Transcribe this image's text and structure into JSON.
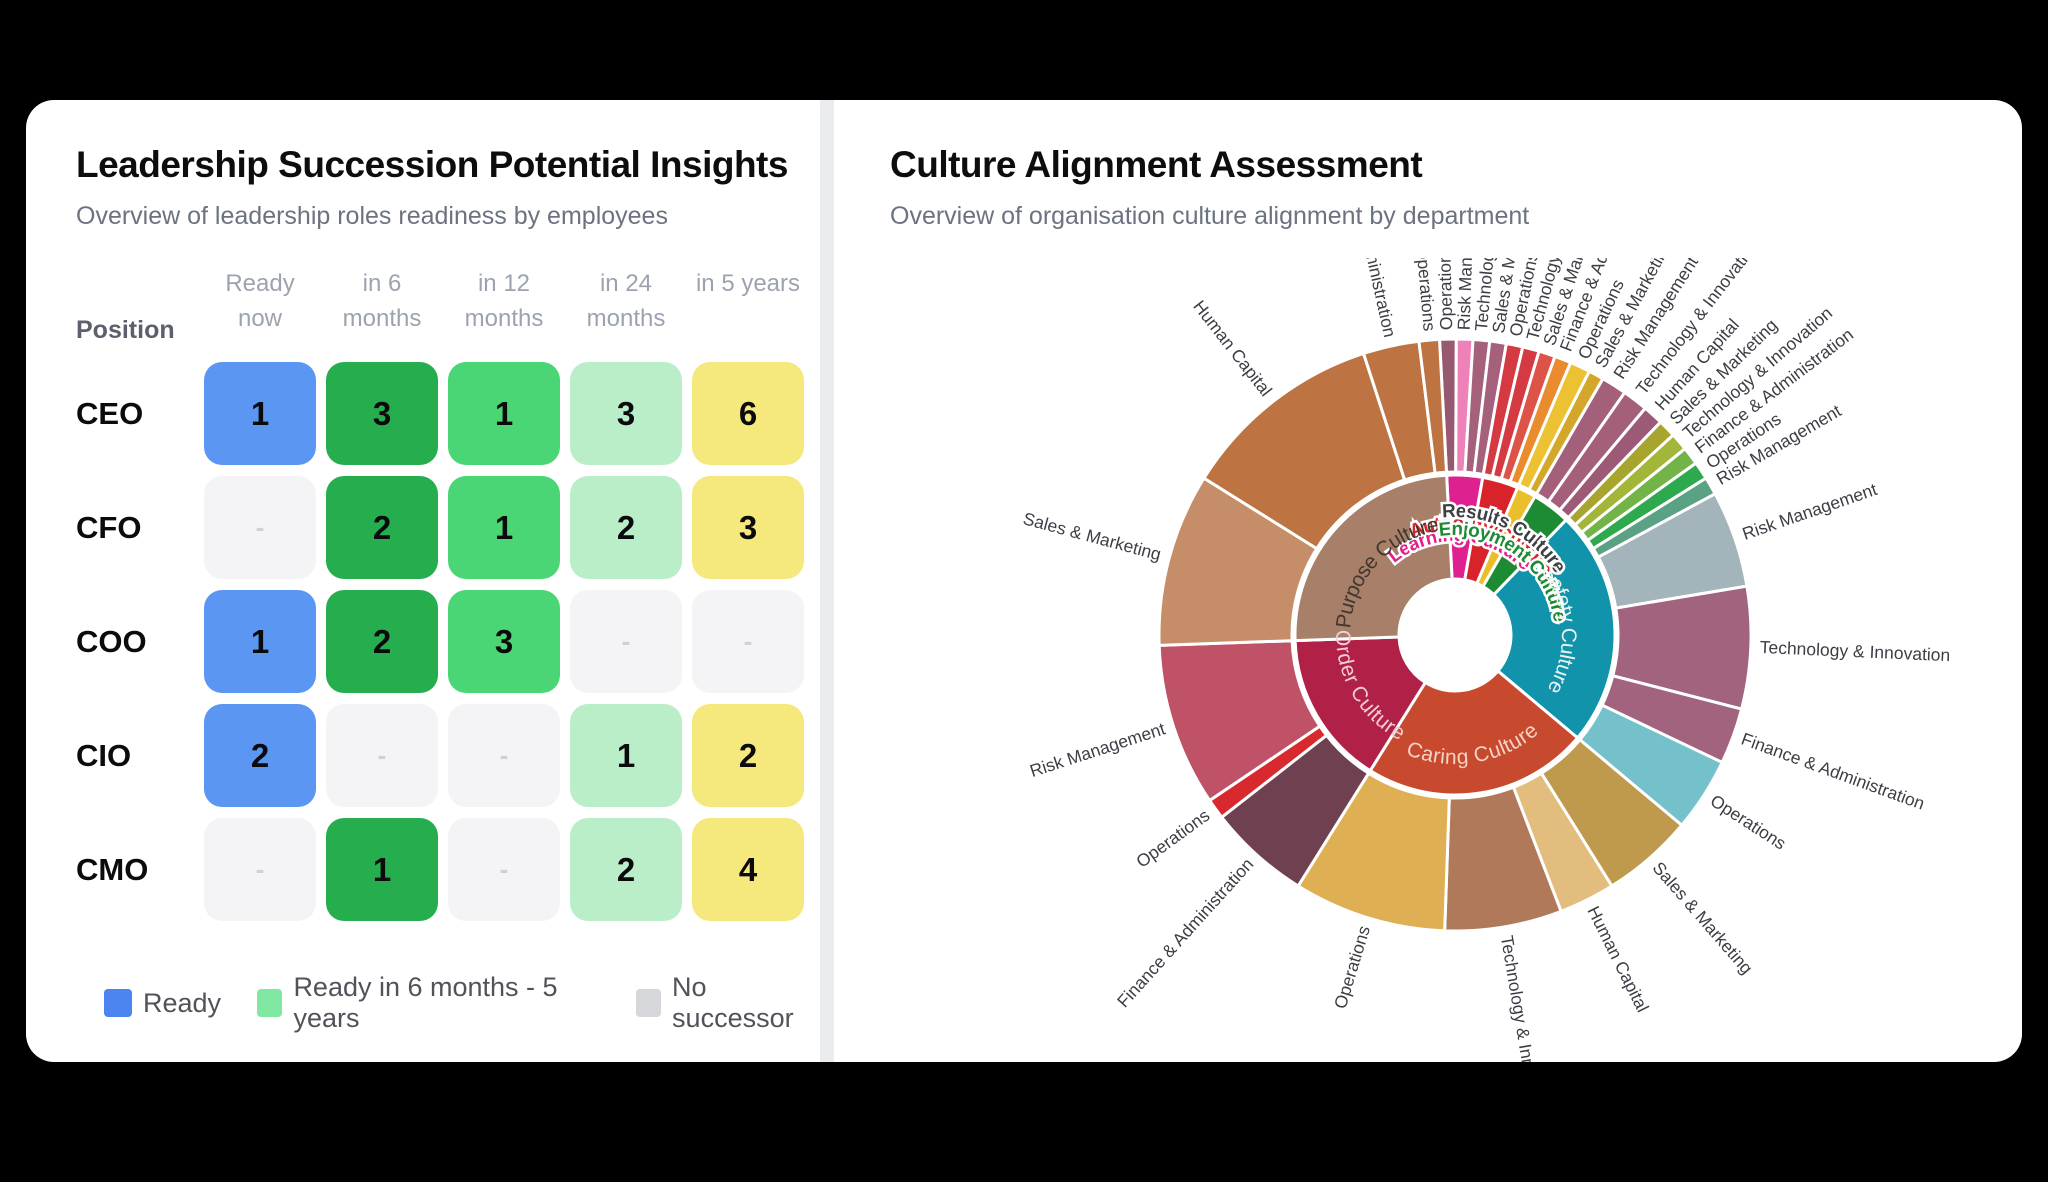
{
  "colors": {
    "background": "#000000",
    "card": "#ffffff",
    "divider": "#e9ebee",
    "title": "#0d0d0f",
    "subtitle": "#6b7280",
    "column_header": "#9ca3af",
    "position_header": "#5b616c",
    "empty_cell_bg": "#f4f4f6",
    "empty_dash": "#cdd0d4",
    "outer_label": "#3b3f45",
    "cell_colors_by_column": [
      "#5b97f2",
      "#25ad4e",
      "#4bd675",
      "#b9eec8",
      "#f5e97e"
    ]
  },
  "left_panel": {
    "title": "Leadership Succession Potential Insights",
    "subtitle": "Overview of leadership roles readiness by employees",
    "position_header": "Position",
    "column_labels": [
      "Ready now",
      "in 6\nmonths",
      "in 12\nmonths",
      "in 24\nmonths",
      "in 5 years"
    ],
    "empty_dash": "-",
    "legend": [
      {
        "label": "Ready",
        "color": "#4d85f0"
      },
      {
        "label": "Ready in 6 months - 5 years",
        "color": "#80e8a2"
      },
      {
        "label": "No successor",
        "color": "#d6d7db"
      }
    ]
  },
  "right_panel": {
    "title": "Culture Alignment Assessment",
    "subtitle": "Overview of organisation culture alignment by department"
  },
  "chart_data": [
    {
      "type": "heatmap",
      "title": "Leadership Succession Potential Insights",
      "categories": [
        "Ready now",
        "in 6 months",
        "in 12 months",
        "in 24 months",
        "in 5 years"
      ],
      "rows": [
        {
          "position": "CEO",
          "values": [
            1,
            3,
            1,
            3,
            6
          ]
        },
        {
          "position": "CFO",
          "values": [
            null,
            2,
            1,
            2,
            3
          ]
        },
        {
          "position": "COO",
          "values": [
            1,
            2,
            3,
            null,
            null
          ]
        },
        {
          "position": "CIO",
          "values": [
            2,
            null,
            null,
            1,
            2
          ]
        },
        {
          "position": "CMO",
          "values": [
            null,
            1,
            null,
            2,
            4
          ]
        }
      ],
      "legend": [
        "Ready",
        "Ready in 6 months - 5 years",
        "No successor"
      ]
    },
    {
      "type": "sunburst",
      "title": "Culture Alignment Assessment",
      "rings": [
        "culture",
        "department"
      ],
      "start_angle_deg": -3,
      "cultures": [
        {
          "name": "Learning Culture",
          "color": "#df2090",
          "label_color": "#e0218a",
          "outlined": true,
          "label_r": 100,
          "departments": [
            {
              "name": "Operations",
              "value": 3.25,
              "color": "#97596f"
            },
            {
              "name": "Risk Management",
              "value": 3.25,
              "color": "#ee82b8"
            },
            {
              "name": "Technology & Innovation",
              "value": 3.25,
              "color": "#a5607c"
            },
            {
              "name": "Sales & Marketing",
              "value": 3.25,
              "color": "#a5607c"
            }
          ]
        },
        {
          "name": "Authority Culture",
          "color": "#d8232a",
          "label_color": "#d8232a",
          "outlined": true,
          "label_r": 112,
          "departments": [
            {
              "name": "Operations",
              "value": 3.25,
              "color": "#d53a43"
            },
            {
              "name": "Technology & Innovation",
              "value": 3.25,
              "color": "#d53a43"
            },
            {
              "name": "Sales & Marketing",
              "value": 3.25,
              "color": "#dd5348"
            },
            {
              "name": "Finance & Administration",
              "value": 3.25,
              "color": "#ea8c2e"
            }
          ]
        },
        {
          "name": "Results Culture",
          "color": "#e9bf2b",
          "label_color": "#3f4045",
          "outlined": true,
          "label_r": 124,
          "departments": [
            {
              "name": "Operations",
              "value": 4,
              "color": "#ecc232"
            },
            {
              "name": "Sales & Marketing",
              "value": 3,
              "color": "#d2a72a"
            }
          ]
        },
        {
          "name": "Enjoyment Culture",
          "color": "#1d8a34",
          "label_color": "#1d8a34",
          "outlined": true,
          "label_r": 106,
          "departments": [
            {
              "name": "Risk Management",
              "value": 5,
              "color": "#a4607b"
            },
            {
              "name": "Technology & Innovation",
              "value": 5,
              "color": "#a4607b"
            },
            {
              "name": "Human Capital",
              "value": 4,
              "color": "#9c5a76"
            }
          ]
        },
        {
          "name": "Safety Culture",
          "color": "#1193ab",
          "label_color": "#e8f3ee",
          "outlined": false,
          "label_r": 114,
          "departments": [
            {
              "name": "Sales & Marketing",
              "value": 3.5,
              "color": "#a8a52f"
            },
            {
              "name": "Technology & Innovation",
              "value": 3.5,
              "color": "#a2b63a"
            },
            {
              "name": "Finance & Administration",
              "value": 3.5,
              "color": "#73b449"
            },
            {
              "name": "Operations",
              "value": 3.5,
              "color": "#2fa94e"
            },
            {
              "name": "Risk Management",
              "value": 3.5,
              "color": "#5ba285"
            },
            {
              "name": "Risk Management",
              "value": 19,
              "color": "#a3b4ba"
            },
            {
              "name": "Technology & Innovation",
              "value": 24,
              "color": "#a2637f"
            },
            {
              "name": "Finance & Administration",
              "value": 11,
              "color": "#a2637f"
            },
            {
              "name": "Operations",
              "value": 14.5,
              "color": "#74c0cb"
            }
          ]
        },
        {
          "name": "Caring Culture",
          "color": "#c74a2f",
          "label_color": "#f5d3c6",
          "outlined": false,
          "label_r": 122,
          "departments": [
            {
              "name": "Sales & Marketing",
              "value": 18,
              "color": "#bf9a4d"
            },
            {
              "name": "Human Capital",
              "value": 11,
              "color": "#e2bd7e"
            },
            {
              "name": "Technology & Innovation",
              "value": 23,
              "color": "#b0795a"
            },
            {
              "name": "Operations",
              "value": 30,
              "color": "#dfaf53"
            }
          ]
        },
        {
          "name": "Order Culture",
          "color": "#b12046",
          "label_color": "#f3ccd8",
          "outlined": false,
          "label_r": 112,
          "departments": [
            {
              "name": "Finance & Administration",
              "value": 20,
              "color": "#6f4050"
            },
            {
              "name": "Operations",
              "value": 4,
              "color": "#d8292f"
            },
            {
              "name": "Risk Management",
              "value": 32,
              "color": "#bf5266"
            }
          ]
        },
        {
          "name": "Purpose Culture",
          "color": "#a87f68",
          "label_color": "#41382f",
          "outlined": false,
          "label_r": 112,
          "departments": [
            {
              "name": "Sales & Marketing",
              "value": 34,
              "color": "#c68e68"
            },
            {
              "name": "Human Capital",
              "value": 40,
              "color": "#bd7342"
            },
            {
              "name": "Finance & Administration",
              "value": 11,
              "color": "#bd7342"
            },
            {
              "name": "Operations",
              "value": 4,
              "color": "#bd7342"
            }
          ]
        }
      ]
    }
  ]
}
